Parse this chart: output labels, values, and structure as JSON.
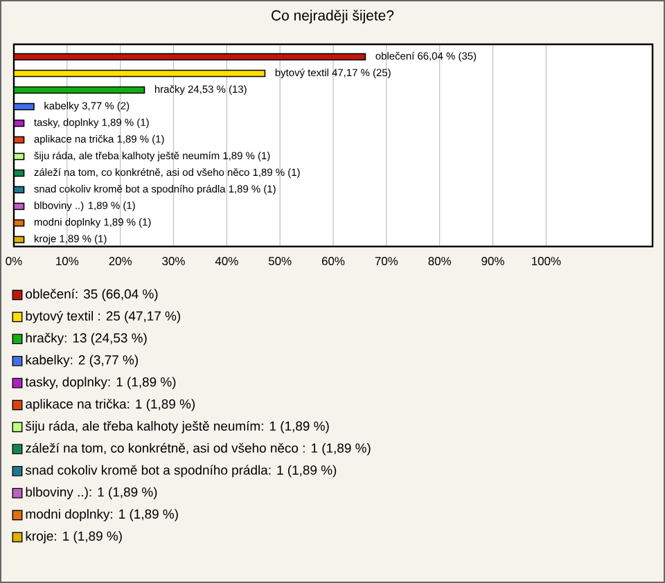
{
  "chart_data": {
    "type": "bar",
    "orientation": "horizontal",
    "title": "Co nejraději šijete?",
    "categories": [
      null,
      null,
      null,
      null,
      null,
      null,
      null,
      null,
      null,
      null,
      null,
      null
    ],
    "values": [
      66.04,
      47.17,
      24.53,
      3.77,
      1.89,
      1.89,
      1.89,
      1.89,
      1.89,
      1.89,
      1.89,
      1.89
    ],
    "colors": [
      "#c0180c",
      "#ffe000",
      "#10b010",
      "#4070f0",
      "#b020c0",
      "#e04010",
      "#c0ff80",
      "#108850",
      "#207890",
      "#c060c0",
      "#e07010",
      "#e0b000"
    ],
    "value_labels": [
      "oblečení 66,04 % (35)",
      "bytový textil  47,17 % (25)",
      "hračky 24,53 % (13)",
      "kabelky 3,77 % (2)",
      "tasky, doplnky 1,89 % (1)",
      "aplikace na trička 1,89 % (1)",
      "šiju ráda, ale třeba kalhoty ještě neumím 1,89 % (1)",
      "záleží na tom, co konkrétně, asi od všeho něco  1,89 % (1)",
      "snad cokoliv kromě bot a spodního prádla 1,89 % (1)",
      "blboviny ..) 1,89 % (1)",
      "modni doplnky 1,89 % (1)",
      "kroje 1,89 % (1)"
    ],
    "annotations": [
      "oblečení: 35 (66,04 %)",
      "bytový textil : 25 (47,17 %)",
      "hračky: 13 (24,53 %)",
      "kabelky: 2 (3,77 %)",
      "tasky, doplnky: 1 (1,89 %)",
      "aplikace na trička: 1 (1,89 %)",
      "šiju ráda, ale třeba kalhoty ještě neumím: 1 (1,89 %)",
      "záleží na tom, co konkrétně, asi od všeho něco : 1 (1,89 %)",
      "snad cokoliv kromě bot a spodního prádla: 1 (1,89 %)",
      "blboviny ..): 1 (1,89 %)",
      "modni doplnky: 1 (1,89 %)",
      "kroje: 1 (1,89 %)"
    ],
    "xlim": [
      0,
      120
    ],
    "xticks": [
      {
        "value": 0,
        "label": "0%"
      },
      {
        "value": 10,
        "label": "10%"
      },
      {
        "value": 20,
        "label": "20%"
      },
      {
        "value": 30,
        "label": "30%"
      },
      {
        "value": 40,
        "label": "40%"
      },
      {
        "value": 50,
        "label": "50%"
      },
      {
        "value": 60,
        "label": "60%"
      },
      {
        "value": 70,
        "label": "70%"
      },
      {
        "value": 80,
        "label": "80%"
      },
      {
        "value": 90,
        "label": "90%"
      },
      {
        "value": 100,
        "label": "100%"
      }
    ],
    "grid": "x",
    "tick_labels": "x"
  }
}
